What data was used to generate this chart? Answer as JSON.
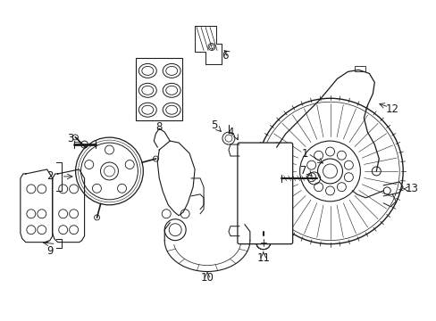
{
  "background_color": "#ffffff",
  "fig_width": 4.89,
  "fig_height": 3.6,
  "dpi": 100,
  "line_color": "#1a1a1a",
  "label_fontsize": 8.5
}
